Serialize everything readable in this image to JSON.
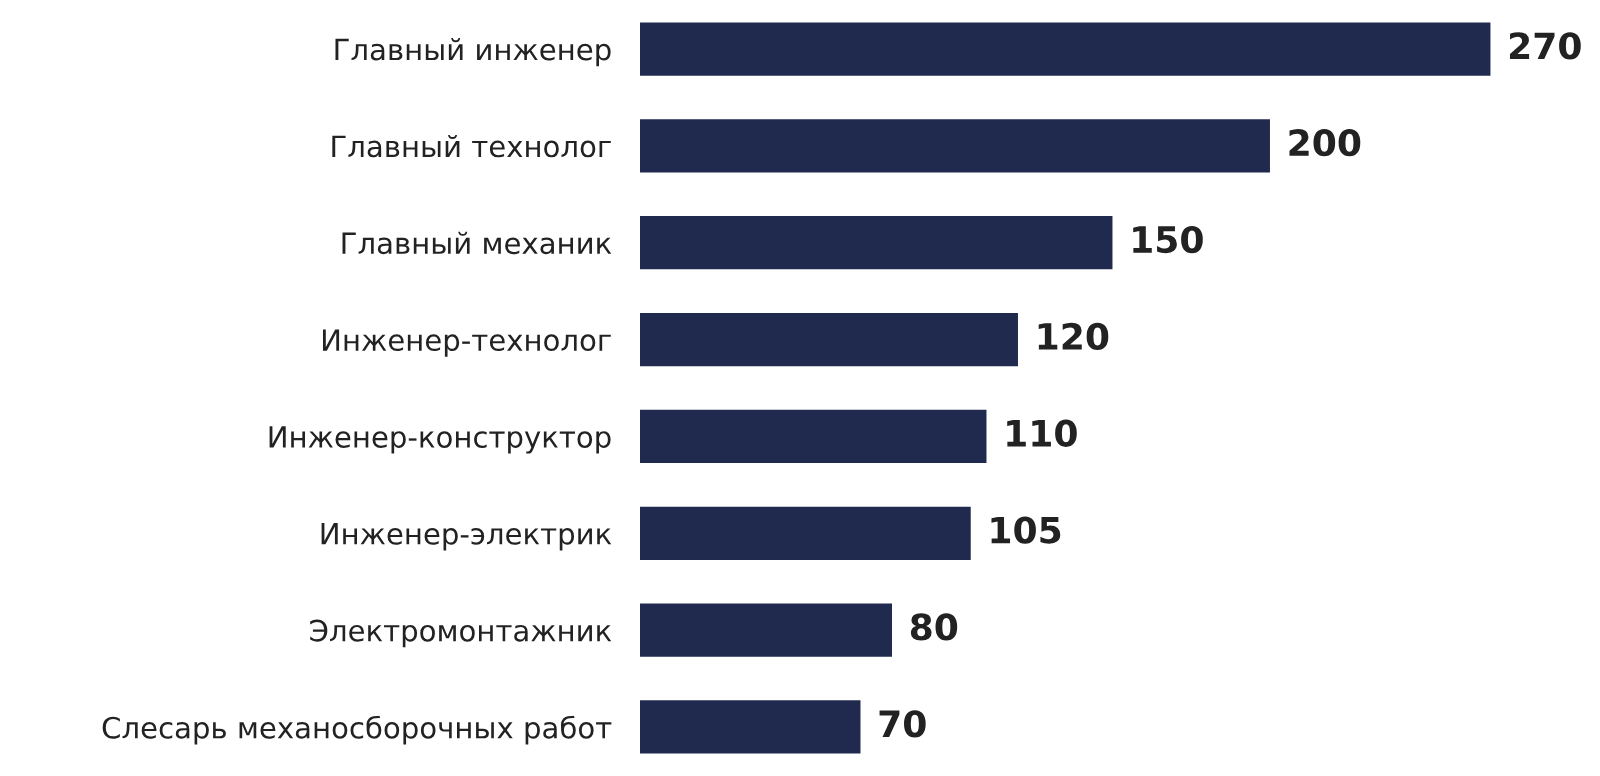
{
  "chart_data": {
    "type": "bar",
    "orientation": "horizontal",
    "categories": [
      "Главный инженер",
      "Главный технолог",
      "Главный механик",
      "Инженер-технолог",
      "Инженер-конструктор",
      "Инженер-электрик",
      "Электромонтажник",
      "Слесарь механосборочных работ"
    ],
    "values": [
      270,
      200,
      150,
      120,
      110,
      105,
      80,
      70
    ],
    "color": "#1f2a4e",
    "data_labels": true,
    "grid": false,
    "legend": false
  }
}
